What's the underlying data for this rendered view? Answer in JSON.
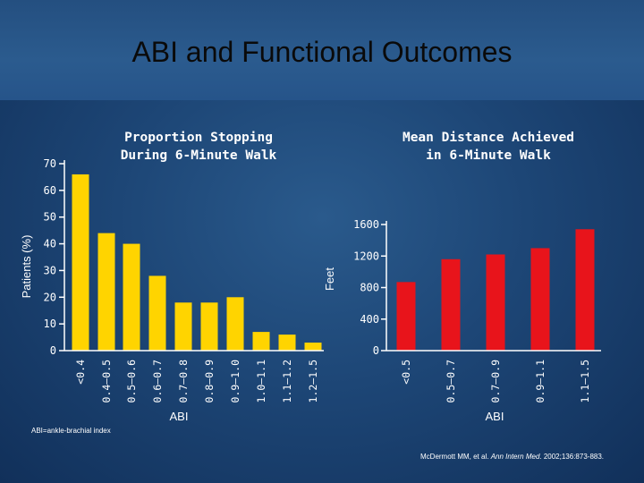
{
  "slide": {
    "title": "ABI and Functional Outcomes",
    "footnote_left": "ABI=ankle-brachial index",
    "footnote_right_authors": "McDermott MM, et al. ",
    "footnote_right_journal": "Ann Intern Med",
    "footnote_right_rest": ". 2002;136:873-883."
  },
  "colors": {
    "background": "#1d4676",
    "chart1_bar": "#ffd400",
    "chart2_bar": "#e8141b",
    "axis": "#ffffff"
  },
  "chart_data": [
    {
      "type": "bar",
      "title_lines": [
        "Proportion Stopping",
        "During 6-Minute Walk"
      ],
      "xlabel": "ABI",
      "ylabel": "Patients (%)",
      "ylim": [
        0,
        70
      ],
      "yticks": [
        0,
        10,
        20,
        30,
        40,
        50,
        60,
        70
      ],
      "categories": [
        "<0.4",
        "0.4–0.5",
        "0.5–0.6",
        "0.6–0.7",
        "0.7–0.8",
        "0.8–0.9",
        "0.9–1.0",
        "1.0–1.1",
        "1.1–1.2",
        "1.2–1.5"
      ],
      "values": [
        66,
        44,
        40,
        28,
        18,
        18,
        20,
        7,
        6,
        3
      ],
      "grid": false,
      "legend": "none"
    },
    {
      "type": "bar",
      "title_lines": [
        "Mean Distance Achieved",
        "in 6-Minute Walk"
      ],
      "xlabel": "ABI",
      "ylabel": "Feet",
      "ylim": [
        0,
        1600
      ],
      "yticks": [
        0,
        400,
        800,
        1200,
        1600
      ],
      "categories": [
        "<0.5",
        "0.5–0.7",
        "0.7–0.9",
        "0.9–1.1",
        "1.1–1.5"
      ],
      "values": [
        870,
        1160,
        1220,
        1300,
        1540
      ],
      "grid": false,
      "legend": "none"
    }
  ]
}
